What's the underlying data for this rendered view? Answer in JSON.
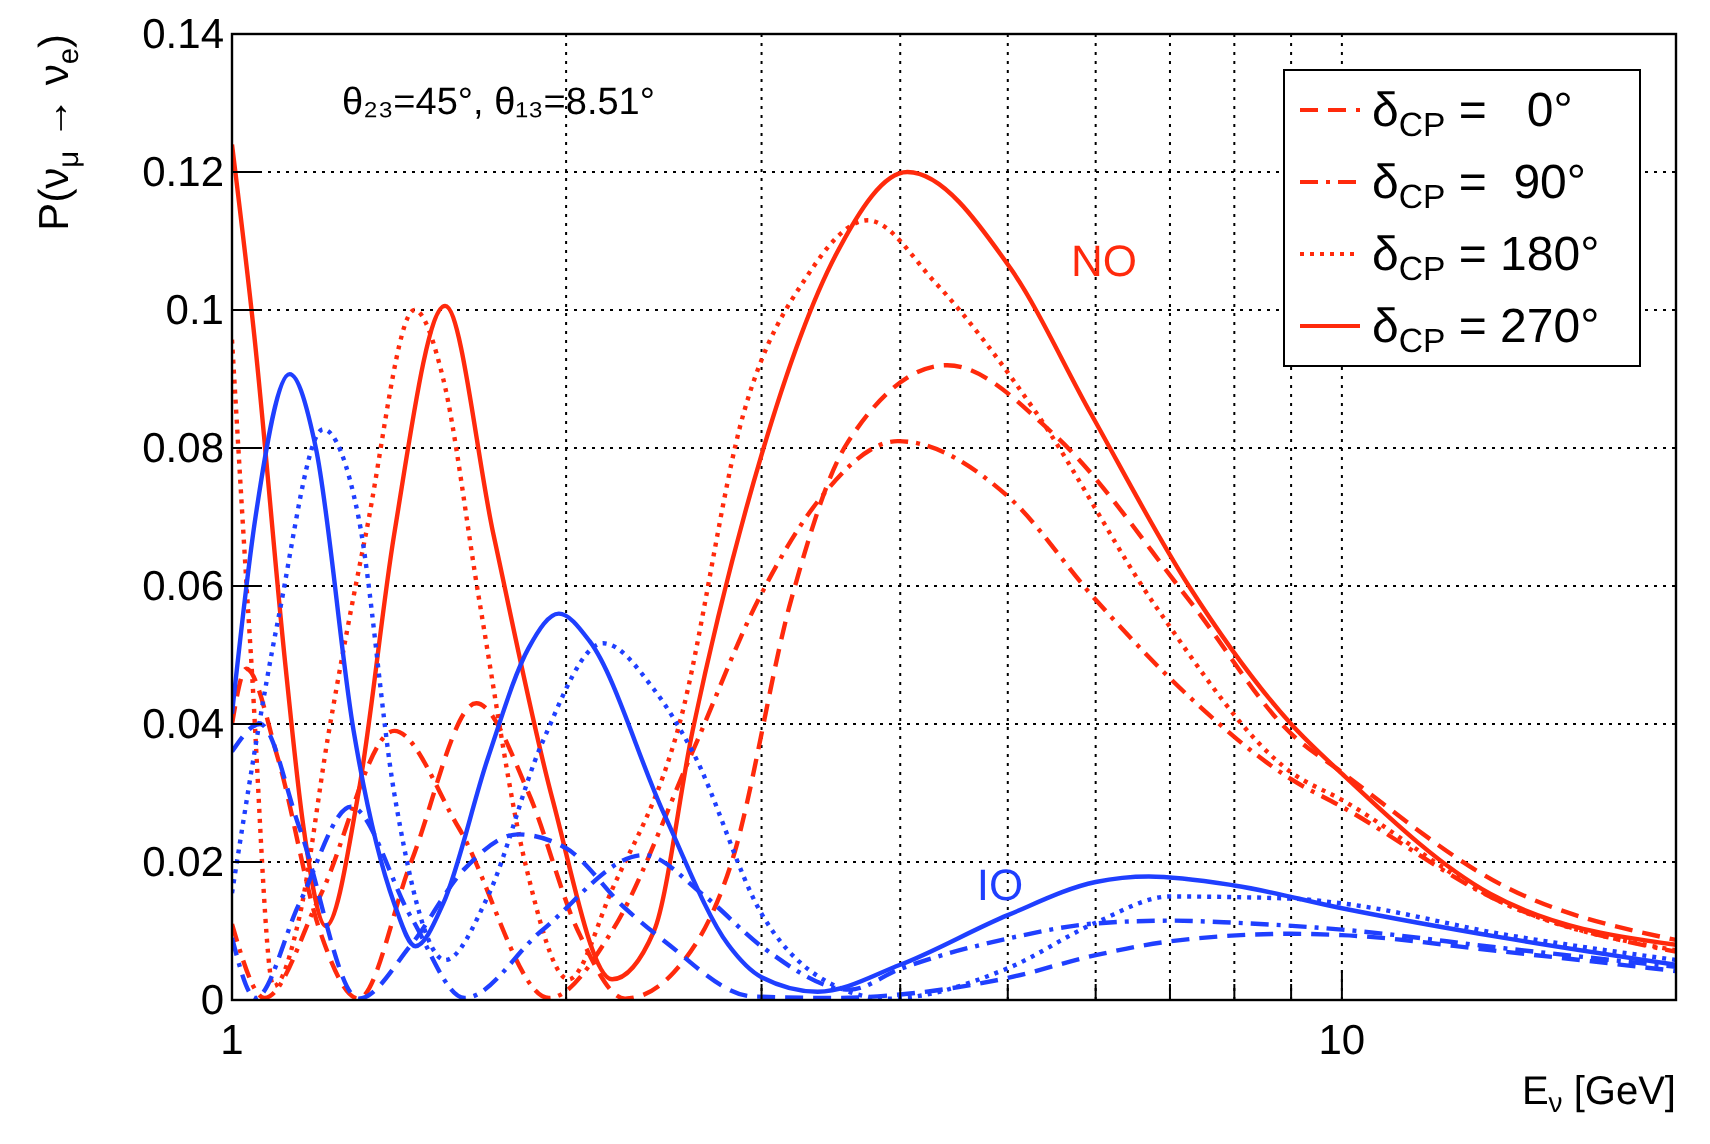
{
  "chart_data": {
    "type": "line",
    "xlabel": "E$_{ν}$ [GeV]",
    "ylabel": "P(ν$_{μ}$ → ν$_{e}$)",
    "log": "x",
    "grid": true,
    "legend": "top right",
    "xlim": [
      1,
      20
    ],
    "ylim": [
      0,
      0.14
    ],
    "xticks": [
      1,
      {
        "value": 2,
        "label": null
      },
      {
        "value": 3,
        "label": null
      },
      {
        "value": 4,
        "label": null
      },
      {
        "value": 5,
        "label": null
      },
      {
        "value": 6,
        "label": null
      },
      {
        "value": 7,
        "label": null
      },
      {
        "value": 8,
        "label": null
      },
      {
        "value": 9,
        "label": null
      },
      10
    ],
    "yticks": [
      0,
      0.02,
      0.04,
      0.06,
      0.08,
      0.1,
      0.12,
      0.14
    ],
    "annotations": [
      "θ₂₃=45°,  θ₁₃=8.51°",
      "NO",
      "IO"
    ],
    "series": [
      {
        "name": "δ$_{CP}$ =   0°",
        "color": "#ff2a0c",
        "line_style": "dashed",
        "x": [
          1,
          1.03,
          1.1,
          1.2,
          1.3,
          1.45,
          1.66,
          1.85,
          2.05,
          2.26,
          2.5,
          2.82,
          3.19,
          3.58,
          4.41,
          5.5,
          7.28,
          9,
          10,
          14,
          20
        ],
        "values": [
          0.04,
          0.048,
          0.035,
          0.01,
          0.0002,
          0.02,
          0.043,
          0.03,
          0.01,
          0.0002,
          0.004,
          0.02,
          0.058,
          0.0806,
          0.092,
          0.082,
          0.058,
          0.0386,
          0.033,
          0.0165,
          0.0087
        ]
      },
      {
        "name": "δ$_{CP}$ =  90°",
        "color": "#ff2a0c",
        "line_style": "dashdot",
        "x": [
          1,
          1.07,
          1.2,
          1.4,
          1.6,
          1.93,
          2.2,
          2.6,
          2.98,
          3.4,
          3.98,
          5,
          6,
          7.28,
          9,
          10,
          14,
          20
        ],
        "values": [
          0.011,
          0.0003,
          0.015,
          0.039,
          0.025,
          0.0003,
          0.01,
          0.036,
          0.058,
          0.073,
          0.081,
          0.073,
          0.058,
          0.044,
          0.032,
          0.028,
          0.014,
          0.007
        ]
      },
      {
        "name": "δ$_{CP}$ = 180°",
        "color": "#ff2a0c",
        "line_style": "dotted",
        "x": [
          1,
          1.04,
          1.09,
          1.15,
          1.22,
          1.32,
          1.46,
          1.55,
          1.67,
          1.84,
          2.01,
          2.2,
          2.53,
          2.89,
          3.3,
          3.74,
          4.3,
          5.31,
          6.8,
          9,
          10,
          14,
          20
        ],
        "values": [
          0.0957,
          0.05,
          0.002,
          0.012,
          0.038,
          0.0675,
          0.1,
          0.09,
          0.058,
          0.0194,
          0.003,
          0.016,
          0.04,
          0.085,
          0.105,
          0.113,
          0.104,
          0.085,
          0.057,
          0.033,
          0.029,
          0.014,
          0.0072
        ]
      },
      {
        "name": "δ$_{CP}$ = 270°",
        "color": "#ff2a0c",
        "line_style": "solid",
        "x": [
          1,
          1.047,
          1.118,
          1.16,
          1.215,
          1.3,
          1.4,
          1.556,
          1.72,
          1.945,
          2.2,
          2.4,
          2.6,
          3,
          3.5,
          4.06,
          5.03,
          5.94,
          7.28,
          9,
          10,
          13.6,
          20
        ],
        "values": [
          0.124,
          0.0965,
          0.048,
          0.025,
          0.0107,
          0.03,
          0.0675,
          0.1006,
          0.0675,
          0.029,
          0.003,
          0.01,
          0.039,
          0.079,
          0.108,
          0.12,
          0.106,
          0.085,
          0.06,
          0.04,
          0.0328,
          0.0154,
          0.008
        ]
      },
      {
        "color": "#1f3fff",
        "line_style": "dashed",
        "x": [
          1,
          1.06,
          1.15,
          1.3,
          1.45,
          1.62,
          1.81,
          2,
          2.26,
          2.45,
          2.95,
          3.5,
          4,
          5,
          6,
          7,
          9,
          10,
          14,
          20
        ],
        "values": [
          0.036,
          0.04,
          0.025,
          0.0002,
          0.008,
          0.019,
          0.024,
          0.022,
          0.0133,
          0.0086,
          0.0005,
          0.0003,
          0.0008,
          0.0032,
          0.0065,
          0.0085,
          0.0096,
          0.0094,
          0.007,
          0.0042
        ]
      },
      {
        "color": "#1f3fff",
        "line_style": "dashdot",
        "x": [
          1,
          1.05,
          1.15,
          1.28,
          1.45,
          1.62,
          1.9,
          2.35,
          2.66,
          3.01,
          3.6,
          4,
          5,
          6,
          7,
          8,
          10,
          14,
          20
        ],
        "values": [
          0.009,
          0.0003,
          0.014,
          0.028,
          0.012,
          0.0003,
          0.01,
          0.021,
          0.0152,
          0.0076,
          0.0015,
          0.0045,
          0.0089,
          0.0111,
          0.0115,
          0.0112,
          0.0102,
          0.0075,
          0.0048
        ]
      },
      {
        "color": "#1f3fff",
        "line_style": "dotted",
        "x": [
          1,
          1.1,
          1.208,
          1.3,
          1.4,
          1.556,
          1.7,
          1.9,
          2.16,
          2.4,
          2.6,
          3,
          3.5,
          3.9,
          5,
          6,
          7,
          9,
          10,
          14,
          20
        ],
        "values": [
          0.0155,
          0.055,
          0.0827,
          0.07,
          0.03,
          0.0058,
          0.015,
          0.037,
          0.0517,
          0.045,
          0.036,
          0.0125,
          0.002,
          0.0002,
          0.0046,
          0.0112,
          0.015,
          0.0147,
          0.014,
          0.0095,
          0.0058
        ]
      },
      {
        "color": "#1f3fff",
        "line_style": "solid",
        "x": [
          1,
          1.05,
          1.127,
          1.19,
          1.287,
          1.4,
          1.463,
          1.55,
          1.7,
          1.85,
          1.97,
          2.1,
          2.45,
          2.8,
          3,
          3.37,
          4,
          5,
          6,
          6.7,
          8,
          10,
          14,
          20
        ],
        "values": [
          0.0415,
          0.07,
          0.0907,
          0.08,
          0.039,
          0.014,
          0.0078,
          0.014,
          0.035,
          0.051,
          0.056,
          0.052,
          0.027,
          0.008,
          0.0033,
          0.0012,
          0.0051,
          0.0123,
          0.0171,
          0.0179,
          0.0166,
          0.0133,
          0.009,
          0.0051
        ]
      }
    ]
  }
}
